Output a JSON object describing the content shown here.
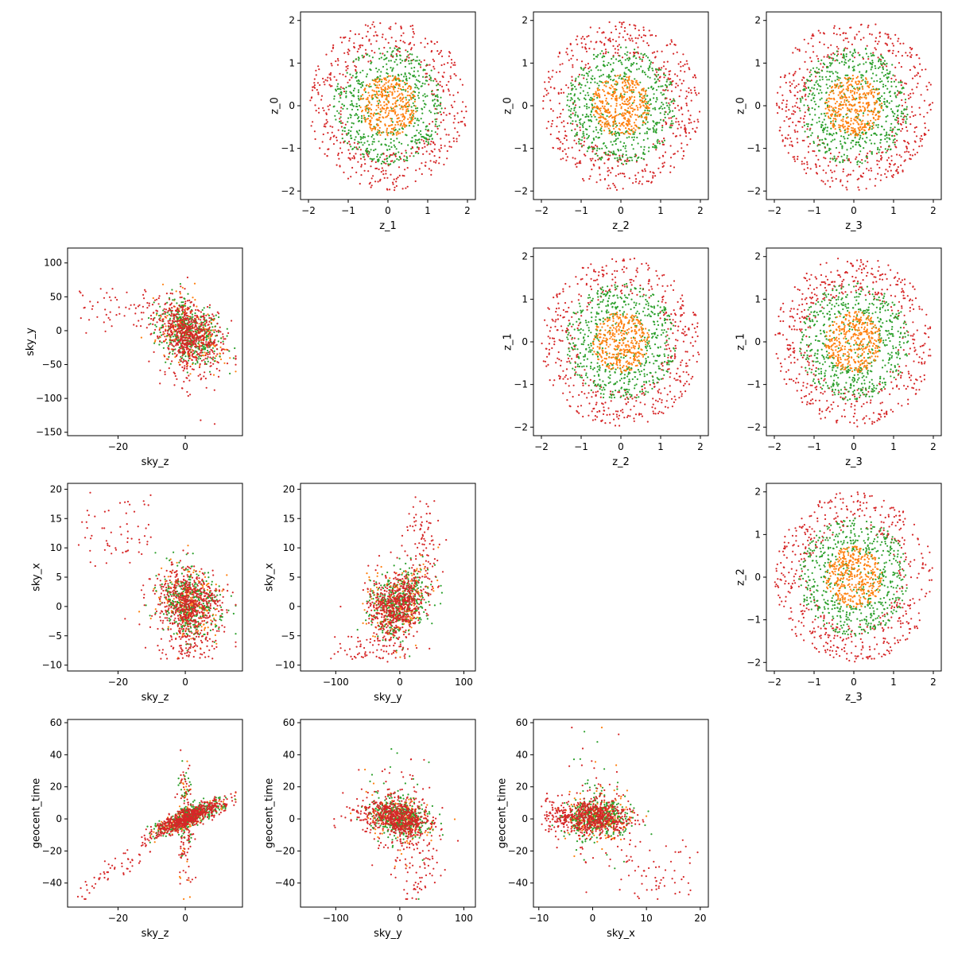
{
  "chart_data": {
    "type": "scatter",
    "layout": "corner-plot",
    "grid": false,
    "series_colors": [
      "#d62728",
      "#2ca02c",
      "#ff7f0e"
    ],
    "panels": [
      {
        "id": "z0-vs-z1",
        "kind": "radial",
        "xlabel": "z_1",
        "ylabel": "z_0",
        "xlim": [
          -2.2,
          2.2
        ],
        "ylim": [
          -2.2,
          2.2
        ],
        "xticks": [
          -2,
          -1,
          0,
          1,
          2
        ],
        "yticks": [
          -2,
          -1,
          0,
          1,
          2
        ]
      },
      {
        "id": "z0-vs-z2",
        "kind": "radial",
        "xlabel": "z_2",
        "ylabel": "z_0",
        "xlim": [
          -2.2,
          2.2
        ],
        "ylim": [
          -2.2,
          2.2
        ],
        "xticks": [
          -2,
          -1,
          0,
          1,
          2
        ],
        "yticks": [
          -2,
          -1,
          0,
          1,
          2
        ]
      },
      {
        "id": "z0-vs-z3",
        "kind": "radial",
        "xlabel": "z_3",
        "ylabel": "z_0",
        "xlim": [
          -2.2,
          2.2
        ],
        "ylim": [
          -2.2,
          2.2
        ],
        "xticks": [
          -2,
          -1,
          0,
          1,
          2
        ],
        "yticks": [
          -2,
          -1,
          0,
          1,
          2
        ]
      },
      {
        "id": "skyy-vs-skyz",
        "kind": "sky_zy",
        "xlabel": "sky_z",
        "ylabel": "sky_y",
        "xlim": [
          -35,
          17
        ],
        "ylim": [
          -155,
          122
        ],
        "xticks": [
          -20,
          0
        ],
        "yticks": [
          -150,
          -100,
          -50,
          0,
          50,
          100
        ]
      },
      {
        "id": "z1-vs-z2",
        "kind": "radial",
        "xlabel": "z_2",
        "ylabel": "z_1",
        "xlim": [
          -2.2,
          2.2
        ],
        "ylim": [
          -2.2,
          2.2
        ],
        "xticks": [
          -2,
          -1,
          0,
          1,
          2
        ],
        "yticks": [
          -2,
          -1,
          0,
          1,
          2
        ]
      },
      {
        "id": "z1-vs-z3",
        "kind": "radial",
        "xlabel": "z_3",
        "ylabel": "z_1",
        "xlim": [
          -2.2,
          2.2
        ],
        "ylim": [
          -2.2,
          2.2
        ],
        "xticks": [
          -2,
          -1,
          0,
          1,
          2
        ],
        "yticks": [
          -2,
          -1,
          0,
          1,
          2
        ]
      },
      {
        "id": "skyx-vs-skyz",
        "kind": "sky_zx",
        "xlabel": "sky_z",
        "ylabel": "sky_x",
        "xlim": [
          -35,
          17
        ],
        "ylim": [
          -11,
          21
        ],
        "xticks": [
          -20,
          0
        ],
        "yticks": [
          -10,
          -5,
          0,
          5,
          10,
          15,
          20
        ]
      },
      {
        "id": "skyx-vs-skyy",
        "kind": "sky_yx",
        "xlabel": "sky_y",
        "ylabel": "sky_x",
        "xlim": [
          -155,
          118
        ],
        "ylim": [
          -11,
          21
        ],
        "xticks": [
          -100,
          0,
          100
        ],
        "yticks": [
          -10,
          -5,
          0,
          5,
          10,
          15,
          20
        ]
      },
      {
        "id": "z2-vs-z3",
        "kind": "radial",
        "xlabel": "z_3",
        "ylabel": "z_2",
        "xlim": [
          -2.2,
          2.2
        ],
        "ylim": [
          -2.2,
          2.2
        ],
        "xticks": [
          -2,
          -1,
          0,
          1,
          2
        ],
        "yticks": [
          -2,
          -1,
          0,
          1,
          2
        ]
      },
      {
        "id": "geocent-vs-skyz",
        "kind": "geo_z",
        "xlabel": "sky_z",
        "ylabel": "geocent_time",
        "xlim": [
          -35,
          17
        ],
        "ylim": [
          -55,
          62
        ],
        "xticks": [
          -20,
          0
        ],
        "yticks": [
          -40,
          -20,
          0,
          20,
          40,
          60
        ]
      },
      {
        "id": "geocent-vs-skyy",
        "kind": "geo_y",
        "xlabel": "sky_y",
        "ylabel": "geocent_time",
        "xlim": [
          -155,
          118
        ],
        "ylim": [
          -55,
          62
        ],
        "xticks": [
          -100,
          0,
          100
        ],
        "yticks": [
          -40,
          -20,
          0,
          20,
          40,
          60
        ]
      },
      {
        "id": "geocent-vs-skyx",
        "kind": "geo_x",
        "xlabel": "sky_x",
        "ylabel": "geocent_time",
        "xlim": [
          -11,
          21.5
        ],
        "ylim": [
          -55,
          62
        ],
        "xticks": [
          -10,
          0,
          10,
          20
        ],
        "yticks": [
          -40,
          -20,
          0,
          20,
          40,
          60
        ]
      }
    ]
  }
}
